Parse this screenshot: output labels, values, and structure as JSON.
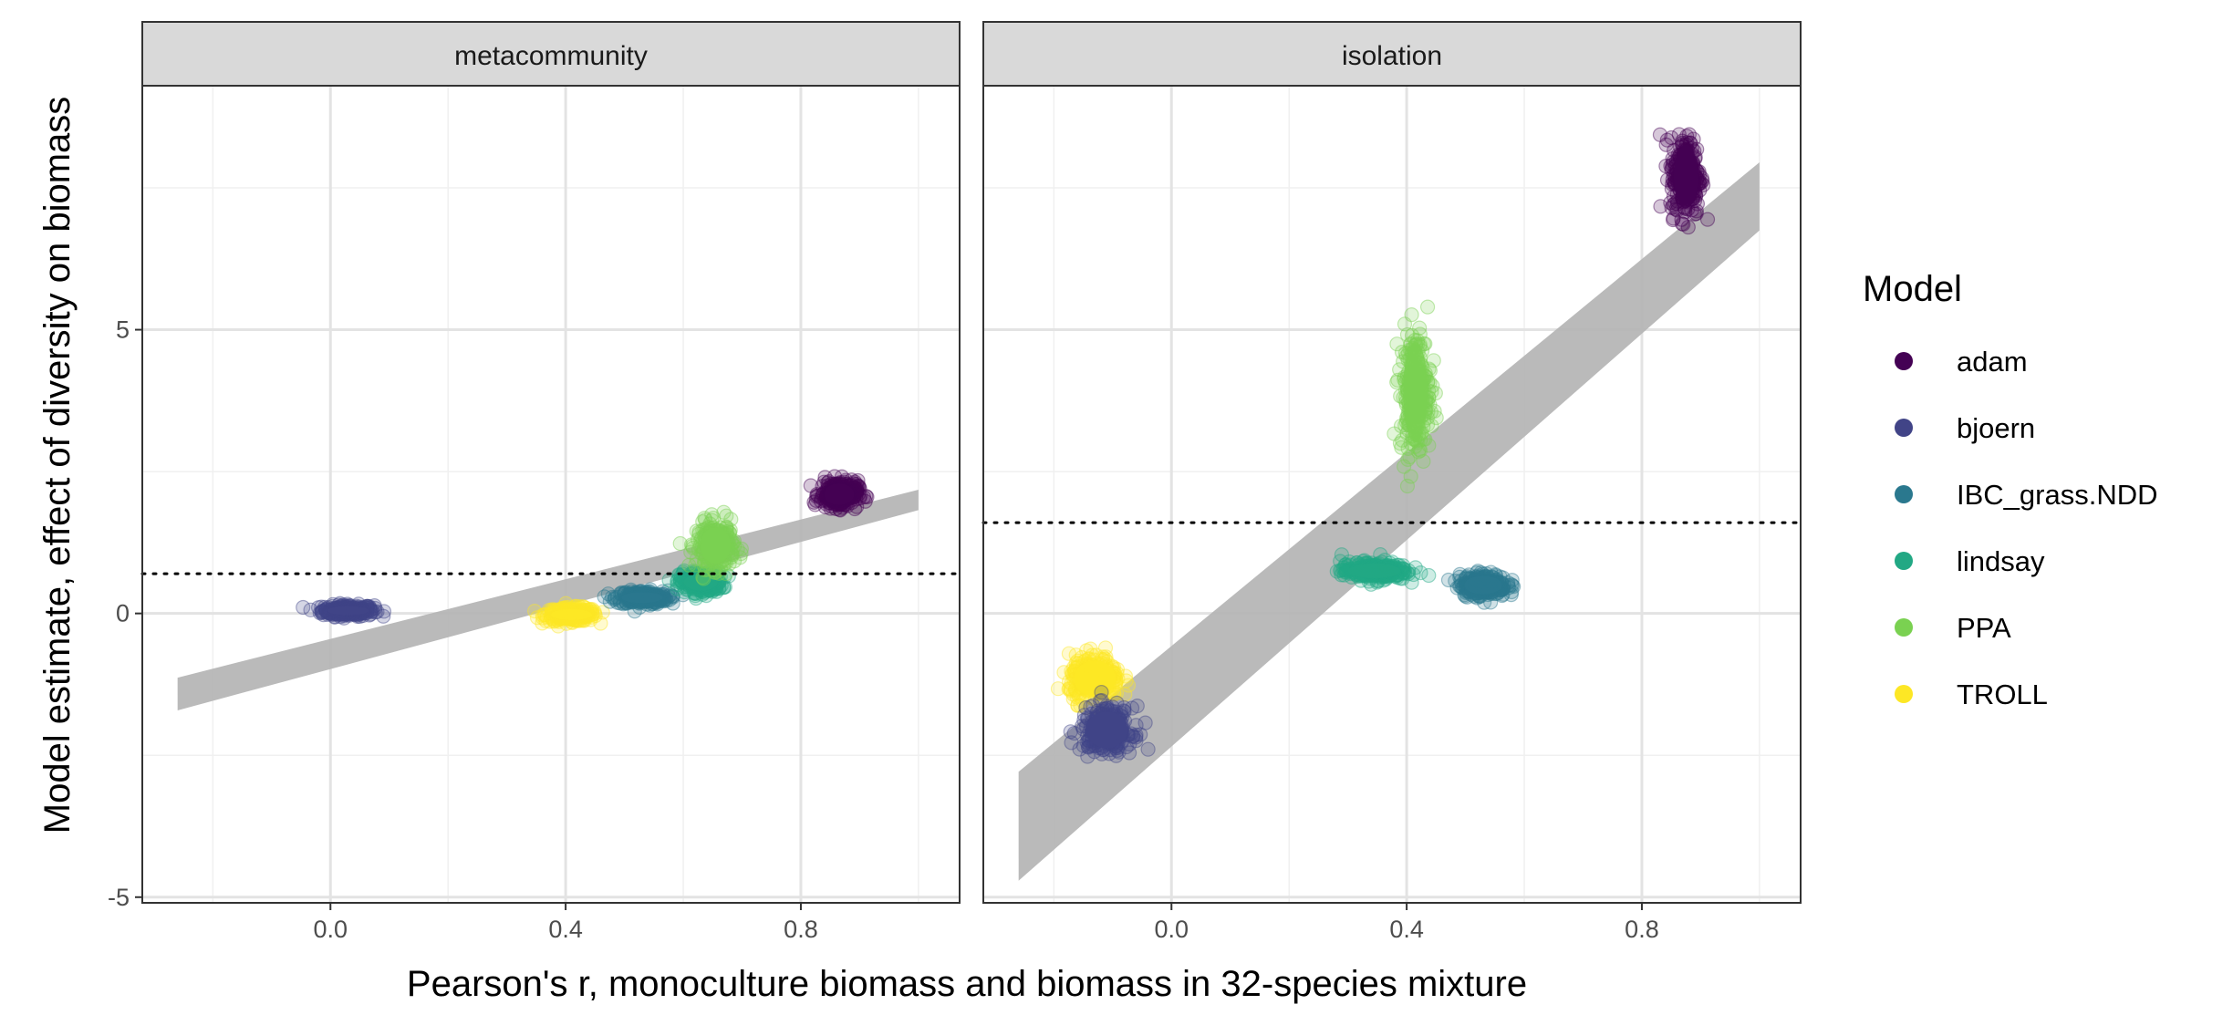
{
  "chart_data": {
    "type": "scatter",
    "xlabel": "Pearson's r, monoculture biomass and biomass in 32-species mixture",
    "ylabel": "Model estimate, effect of diversity on biomass",
    "xlim": [
      -0.32,
      1.07
    ],
    "ylim": [
      -5.1,
      9.3
    ],
    "x_ticks": [
      0.0,
      0.4,
      0.8
    ],
    "x_tick_labels": [
      "0.0",
      "0.4",
      "0.8"
    ],
    "y_ticks": [
      -5,
      0,
      5
    ],
    "y_tick_labels": [
      "-5",
      "0",
      "5"
    ],
    "grid": true,
    "legend": {
      "title": "Model",
      "position": "right",
      "entries": [
        {
          "name": "adam",
          "color": "#440154"
        },
        {
          "name": "bjoern",
          "color": "#414487"
        },
        {
          "name": "IBC_grass.NDD",
          "color": "#2A788E"
        },
        {
          "name": "lindsay",
          "color": "#22A884"
        },
        {
          "name": "PPA",
          "color": "#7AD151"
        },
        {
          "name": "TROLL",
          "color": "#FDE725"
        }
      ]
    },
    "panels": [
      {
        "strip": "metacommunity",
        "hline": 0.7,
        "fit_line": {
          "x": [
            -0.26,
            1.0
          ],
          "y": [
            -1.42,
            2.0
          ],
          "band_halfwidth": 0.18
        },
        "clusters": [
          {
            "model": "bjoern",
            "x": 0.03,
            "y": 0.05,
            "sd_x": 0.022,
            "sd_y": 0.05
          },
          {
            "model": "TROLL",
            "x": 0.41,
            "y": -0.02,
            "sd_x": 0.022,
            "sd_y": 0.06
          },
          {
            "model": "IBC_grass.NDD",
            "x": 0.53,
            "y": 0.28,
            "sd_x": 0.022,
            "sd_y": 0.06
          },
          {
            "model": "lindsay",
            "x": 0.63,
            "y": 0.55,
            "sd_x": 0.018,
            "sd_y": 0.09
          },
          {
            "model": "PPA",
            "x": 0.655,
            "y": 1.2,
            "sd_x": 0.016,
            "sd_y": 0.2
          },
          {
            "model": "adam",
            "x": 0.865,
            "y": 2.1,
            "sd_x": 0.016,
            "sd_y": 0.12
          }
        ]
      },
      {
        "strip": "isolation",
        "hline": 1.6,
        "fit_line": {
          "x": [
            -0.26,
            1.0
          ],
          "y": [
            -3.75,
            7.35
          ],
          "band_halfwidth": 0.6
        },
        "clusters": [
          {
            "model": "adam",
            "x": 0.875,
            "y": 7.7,
            "sd_x": 0.013,
            "sd_y": 0.35
          },
          {
            "model": "PPA",
            "x": 0.415,
            "y": 3.9,
            "sd_x": 0.013,
            "sd_y": 0.55
          },
          {
            "model": "lindsay",
            "x": 0.345,
            "y": 0.75,
            "sd_x": 0.028,
            "sd_y": 0.08
          },
          {
            "model": "IBC_grass.NDD",
            "x": 0.53,
            "y": 0.5,
            "sd_x": 0.02,
            "sd_y": 0.1
          },
          {
            "model": "TROLL",
            "x": -0.13,
            "y": -1.15,
            "sd_x": 0.022,
            "sd_y": 0.2
          },
          {
            "model": "bjoern",
            "x": -0.11,
            "y": -2.05,
            "sd_x": 0.022,
            "sd_y": 0.2
          }
        ]
      }
    ]
  }
}
